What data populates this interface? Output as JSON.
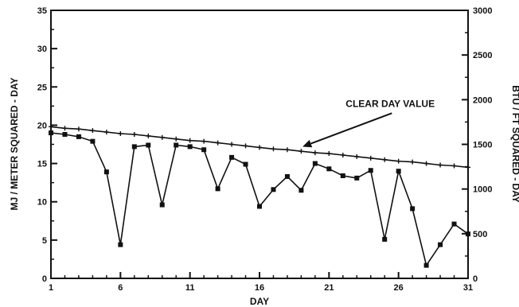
{
  "chart_data": {
    "type": "line",
    "xlabel": "DAY",
    "ylabel": "MJ / METER SQUARED - DAY",
    "ylabel_right": "BTU / FT SQUARED - DAY",
    "xlim": [
      1,
      31
    ],
    "ylim": [
      0,
      35
    ],
    "ylim_right": [
      0,
      3000
    ],
    "x_ticks": [
      1,
      6,
      11,
      16,
      21,
      26,
      31
    ],
    "y_ticks": [
      0,
      5,
      10,
      15,
      20,
      25,
      30,
      35
    ],
    "y_ticks_right": [
      0,
      500,
      1000,
      1500,
      2000,
      2500,
      3000
    ],
    "grid": false,
    "annotation": {
      "text": "CLEAR DAY VALUE",
      "x": 22.2,
      "y": 22.4,
      "arrow_to_x": 19.1,
      "arrow_to_y": 17.2
    },
    "series": [
      {
        "marker": "plus",
        "x": [
          1,
          2,
          3,
          4,
          5,
          6,
          7,
          8,
          9,
          10,
          11,
          12,
          13,
          14,
          15,
          16,
          17,
          18,
          19,
          20,
          21,
          22,
          23,
          24,
          25,
          26,
          27,
          28,
          29,
          30,
          31
        ],
        "values": [
          19.8,
          19.6,
          19.5,
          19.3,
          19.1,
          18.9,
          18.8,
          18.6,
          18.4,
          18.2,
          18.0,
          17.9,
          17.7,
          17.5,
          17.3,
          17.1,
          16.9,
          16.8,
          16.6,
          16.4,
          16.3,
          16.1,
          15.9,
          15.7,
          15.5,
          15.3,
          15.2,
          15.0,
          14.8,
          14.7,
          14.5
        ]
      },
      {
        "marker": "square",
        "x": [
          1,
          2,
          3,
          4,
          5,
          6,
          7,
          8,
          9,
          10,
          11,
          12,
          13,
          14,
          15,
          16,
          17,
          18,
          19,
          20,
          21,
          22,
          23,
          24,
          25,
          26,
          27,
          28,
          29,
          30,
          31
        ],
        "values": [
          19.0,
          18.8,
          18.5,
          17.9,
          13.9,
          4.4,
          17.2,
          17.4,
          9.6,
          17.4,
          17.2,
          16.8,
          11.7,
          15.8,
          14.9,
          9.4,
          11.6,
          13.3,
          11.5,
          15.0,
          14.3,
          13.4,
          13.1,
          14.1,
          5.1,
          14.0,
          9.1,
          1.7,
          4.4,
          7.1,
          5.8
        ]
      }
    ]
  }
}
